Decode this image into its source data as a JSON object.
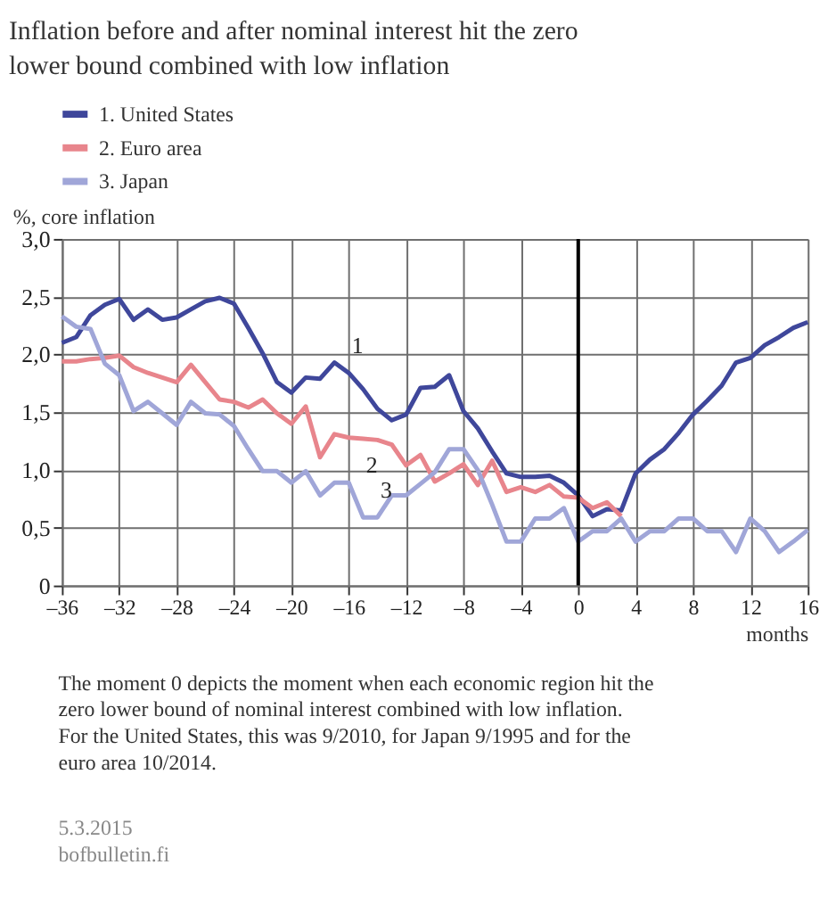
{
  "chart_data": {
    "type": "line",
    "title": "Inflation before and after nominal interest hit the zero\nlower bound combined with low inflation",
    "ylabel": "%, core inflation",
    "xlabel": "months",
    "legend": "top left",
    "grid": true,
    "line_style": "solid",
    "marker": "none",
    "x": [
      -36,
      -35,
      -34,
      -33,
      -32,
      -31,
      -30,
      -29,
      -28,
      -27,
      -26,
      -25,
      -24,
      -23,
      -22,
      -21,
      -20,
      -19,
      -18,
      -17,
      -16,
      -15,
      -14,
      -13,
      -12,
      -11,
      -10,
      -9,
      -8,
      -7,
      -6,
      -5,
      -4,
      -3,
      -2,
      -1,
      0,
      1,
      2,
      3,
      4,
      5,
      6,
      7,
      8,
      9,
      10,
      11,
      12,
      13,
      14,
      15,
      16
    ],
    "xlim": [
      -36,
      16
    ],
    "ylim": [
      0,
      3
    ],
    "xticks": [
      {
        "value": -36,
        "label": "–36"
      },
      {
        "value": -32,
        "label": "–32"
      },
      {
        "value": -28,
        "label": "–28"
      },
      {
        "value": -24,
        "label": "–24"
      },
      {
        "value": -20,
        "label": "–20"
      },
      {
        "value": -16,
        "label": "–16"
      },
      {
        "value": -12,
        "label": "–12"
      },
      {
        "value": -8,
        "label": "–8"
      },
      {
        "value": -4,
        "label": "–4"
      },
      0,
      4,
      8,
      12,
      16
    ],
    "yticks": [
      0,
      {
        "value": 0.5,
        "label": "0,5"
      },
      {
        "value": 1,
        "label": "1,0"
      },
      {
        "value": 1.5,
        "label": "1,5"
      },
      {
        "value": 2,
        "label": "2,0"
      },
      {
        "value": 2.5,
        "label": "2,5"
      },
      {
        "value": 3,
        "label": "3,0"
      }
    ],
    "series": [
      {
        "name": "1. United States",
        "color": "#3f479b",
        "values": [
          2.1,
          2.15,
          2.34,
          2.43,
          2.48,
          2.3,
          2.39,
          2.3,
          2.32,
          2.39,
          2.46,
          2.49,
          2.44,
          2.23,
          2.01,
          1.76,
          1.67,
          1.8,
          1.79,
          1.93,
          1.84,
          1.7,
          1.53,
          1.43,
          1.48,
          1.71,
          1.72,
          1.82,
          1.51,
          1.36,
          1.16,
          0.97,
          0.94,
          0.94,
          0.95,
          0.89,
          0.78,
          0.6,
          0.66,
          0.65,
          0.97,
          1.09,
          1.18,
          1.32,
          1.48,
          1.6,
          1.73,
          1.93,
          1.97,
          2.08,
          2.15,
          2.23,
          2.28
        ]
      },
      {
        "name": "2. Euro area",
        "color": "#e8858c",
        "x": [
          -36,
          -35,
          -34,
          -33,
          -32,
          -31,
          -30,
          -29,
          -28,
          -27,
          -26,
          -25,
          -24,
          -23,
          -22,
          -21,
          -20,
          -19,
          -18,
          -17,
          -16,
          -15,
          -14,
          -13,
          -12,
          -11,
          -10,
          -9,
          -8,
          -7,
          -6,
          -5,
          -4,
          -3,
          -2,
          -1,
          0,
          1,
          2,
          3
        ],
        "values": [
          1.94,
          1.94,
          1.96,
          1.97,
          1.99,
          1.89,
          1.84,
          1.8,
          1.76,
          1.91,
          1.76,
          1.61,
          1.59,
          1.54,
          1.61,
          1.49,
          1.4,
          1.55,
          1.11,
          1.31,
          1.28,
          1.27,
          1.26,
          1.22,
          1.04,
          1.13,
          0.9,
          0.97,
          1.05,
          0.87,
          1.08,
          0.81,
          0.85,
          0.81,
          0.87,
          0.77,
          0.76,
          0.67,
          0.72,
          0.6
        ]
      },
      {
        "name": "3. Japan",
        "color": "#a0a6d8",
        "values": [
          2.33,
          2.24,
          2.22,
          1.92,
          1.82,
          1.51,
          1.59,
          1.49,
          1.39,
          1.59,
          1.49,
          1.48,
          1.38,
          1.18,
          0.99,
          0.99,
          0.89,
          0.99,
          0.78,
          0.89,
          0.89,
          0.59,
          0.59,
          0.78,
          0.78,
          0.88,
          0.98,
          1.18,
          1.18,
          1.0,
          0.7,
          0.38,
          0.38,
          0.58,
          0.58,
          0.67,
          0.38,
          0.47,
          0.47,
          0.58,
          0.38,
          0.47,
          0.47,
          0.58,
          0.58,
          0.47,
          0.47,
          0.29,
          0.58,
          0.47,
          0.29,
          0.38,
          0.48
        ]
      }
    ],
    "ref_lines": [
      {
        "axis": "x",
        "value": 0,
        "color": "#000000"
      }
    ],
    "annotations": [
      {
        "text": "1",
        "x": -16,
        "y": 1.84
      },
      {
        "text": "2",
        "x": -15,
        "y": 1.27
      },
      {
        "text": "3",
        "x": -14,
        "y": 0.59
      },
      "The moment 0 depicts the moment when each economic region hit the zero lower bound of nominal interest combined with low inflation. For the United States, this was 9/2010, for Japan 9/1995 and for the euro area 10/2014.",
      "5.3.2015",
      "bofbulletin.fi"
    ]
  }
}
